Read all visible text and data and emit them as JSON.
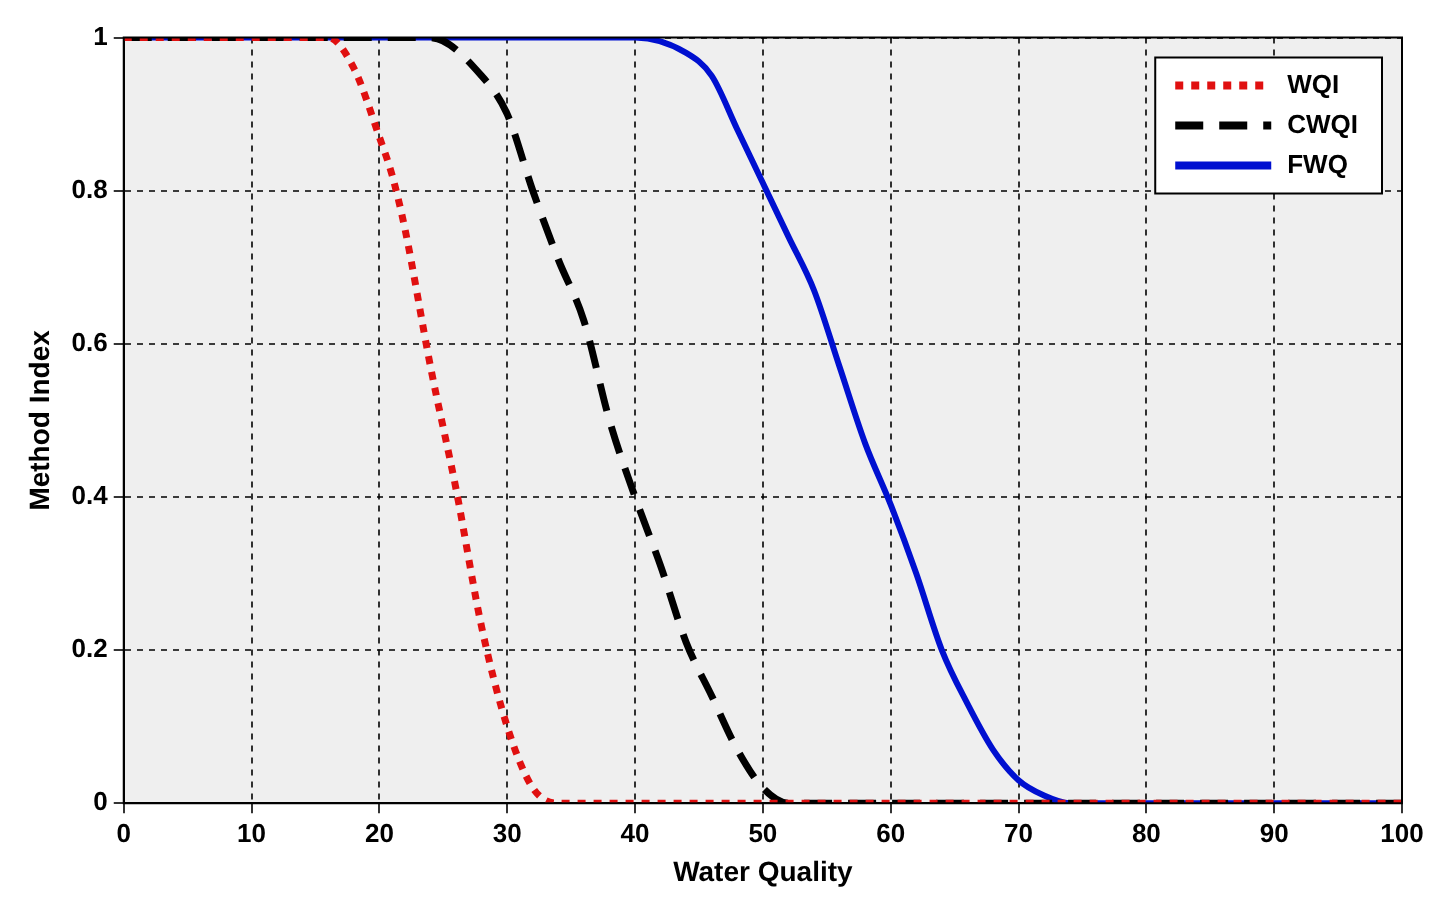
{
  "chart_data": {
    "type": "line",
    "xlabel": "Water Quality",
    "ylabel": "Method Index",
    "xlim": [
      0,
      100
    ],
    "xticks": [
      0,
      10,
      20,
      30,
      40,
      50,
      60,
      70,
      80,
      90,
      100
    ],
    "ylim": [
      0,
      1
    ],
    "yticks": [
      0,
      0.2,
      0.4,
      0.6,
      0.8,
      1
    ],
    "grid": true,
    "legend": "top right",
    "marker": "none",
    "series": [
      {
        "name": "WQI",
        "color": "#e01010",
        "line_style": "dotted",
        "x": [
          0,
          16,
          18,
          20,
          21,
          22,
          24,
          26,
          28,
          30,
          32,
          34,
          100
        ],
        "values": [
          1,
          1,
          0.96,
          0.87,
          0.82,
          0.75,
          0.57,
          0.41,
          0.23,
          0.1,
          0.02,
          0,
          0
        ]
      },
      {
        "name": "CWQI",
        "color": "#000000",
        "line_style": "dashed",
        "x": [
          0,
          24,
          28,
          30,
          32,
          34,
          36,
          38,
          40,
          42,
          44,
          46,
          48,
          50,
          52,
          100
        ],
        "values": [
          1,
          1,
          0.95,
          0.9,
          0.8,
          0.71,
          0.63,
          0.5,
          0.4,
          0.31,
          0.21,
          0.14,
          0.07,
          0.02,
          0,
          0
        ]
      },
      {
        "name": "FWQ",
        "color": "#0010d0",
        "line_style": "solid",
        "x": [
          0,
          40,
          44,
          46,
          48,
          50,
          52,
          54,
          56,
          58,
          60,
          62,
          64,
          66,
          68,
          70,
          72,
          74,
          100
        ],
        "values": [
          1,
          1,
          0.98,
          0.95,
          0.88,
          0.81,
          0.74,
          0.67,
          0.57,
          0.47,
          0.39,
          0.3,
          0.2,
          0.13,
          0.07,
          0.03,
          0.01,
          0,
          0
        ]
      }
    ]
  }
}
